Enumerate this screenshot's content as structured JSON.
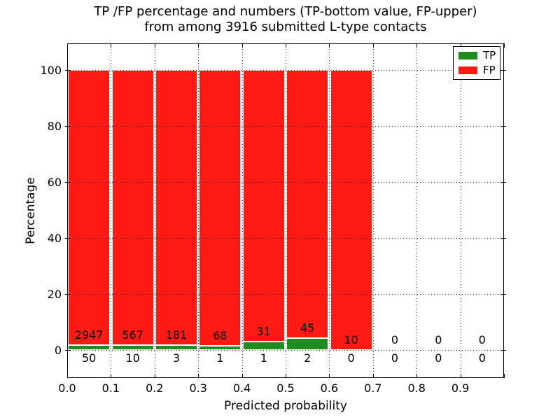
{
  "chart_data": {
    "type": "bar",
    "stacked_percentage": true,
    "title_line1": "TP /FP percentage and numbers (TP-bottom value, FP-upper)",
    "title_line2": "from among 3916 submitted L-type contacts",
    "xlabel": "Predicted probability",
    "ylabel": "Percentage",
    "xlim": [
      0.0,
      1.0
    ],
    "ylim": [
      -10,
      109.5
    ],
    "xtick_labels": [
      "0.0",
      "0.1",
      "0.2",
      "0.3",
      "0.4",
      "0.5",
      "0.6",
      "0.7",
      "0.8",
      "0.9"
    ],
    "ytick_values": [
      0,
      20,
      40,
      60,
      80,
      100
    ],
    "grid": "dotted black, drawn over bars",
    "bin_width": 0.1,
    "categories": [
      "0.0-0.1",
      "0.1-0.2",
      "0.2-0.3",
      "0.3-0.4",
      "0.4-0.5",
      "0.5-0.6",
      "0.6-0.7",
      "0.7-0.8",
      "0.8-0.9",
      "0.9-1.0"
    ],
    "series": [
      {
        "name": "TP",
        "color": "#208c20",
        "counts": [
          50,
          10,
          3,
          1,
          1,
          2,
          0,
          0,
          0,
          0
        ]
      },
      {
        "name": "FP",
        "color": "#ff1a14",
        "counts": [
          2947,
          567,
          181,
          68,
          31,
          45,
          10,
          0,
          0,
          0
        ]
      }
    ],
    "legend": {
      "position": "upper right",
      "entries": [
        {
          "label": "TP",
          "color": "#208c20"
        },
        {
          "label": "FP",
          "color": "#ff1a14"
        }
      ]
    }
  }
}
